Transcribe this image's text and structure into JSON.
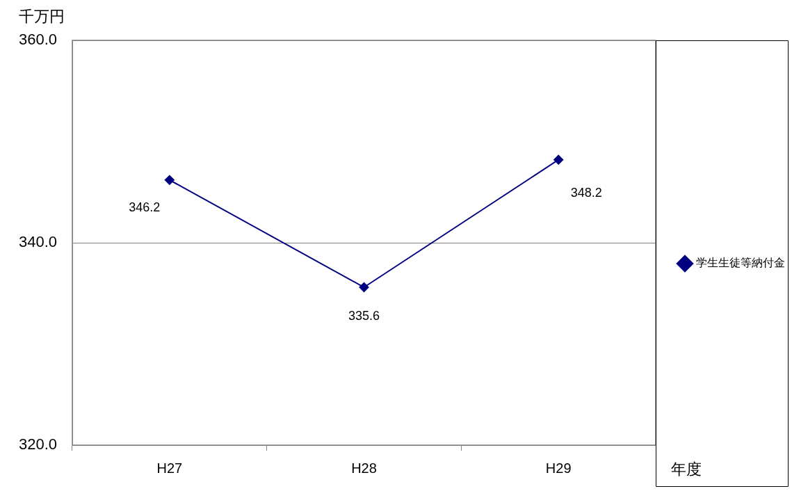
{
  "chart_data": {
    "type": "line",
    "ylabel": "千万円",
    "xlabel": "年度",
    "categories": [
      "H27",
      "H28",
      "H29"
    ],
    "series": [
      {
        "name": "学生生徒等納付金",
        "color": "#000080",
        "values": [
          346.2,
          335.6,
          348.2
        ]
      }
    ],
    "ylim": [
      320,
      360
    ],
    "yticks": [
      {
        "value": 320,
        "label": "320.0"
      },
      {
        "value": 340,
        "label": "340.0"
      },
      {
        "value": 360,
        "label": "360.0"
      }
    ],
    "grid": "y",
    "legend": "right",
    "marker": "diamond",
    "data_labels": true
  }
}
